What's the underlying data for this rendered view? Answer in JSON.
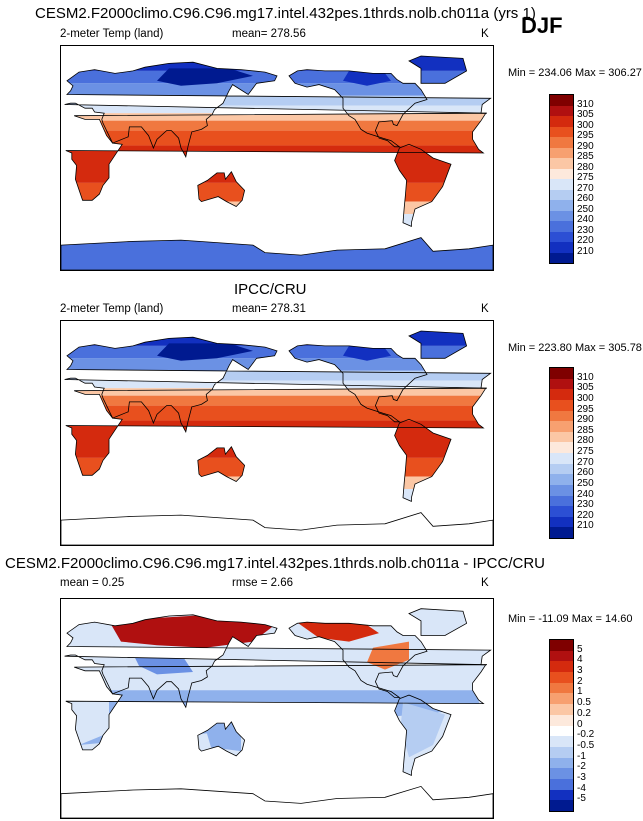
{
  "header": {
    "title": "CESM2.F2000climo.C96.C96.mg17.intel.432pes.1thrds.nolb.ch011a (yrs 1)",
    "season": "DJF"
  },
  "panels": [
    {
      "id": "model",
      "title": "",
      "variable": "2-meter Temp (land)",
      "stat_text": "mean= 278.56",
      "units": "K",
      "minmax": "Min = 234.06 Max = 306.27",
      "levels": [
        "310",
        "305",
        "300",
        "295",
        "290",
        "285",
        "280",
        "275",
        "270",
        "260",
        "250",
        "240",
        "230",
        "220",
        "210"
      ],
      "colors": [
        "#7f0000",
        "#b01010",
        "#d42a0e",
        "#e8501e",
        "#f07840",
        "#f7a070",
        "#fbc7a5",
        "#fde9dc",
        "#d9e6f8",
        "#b5cdf2",
        "#8fb1ec",
        "#6b91e4",
        "#4a70dc",
        "#2c4fd4",
        "#1230c0",
        "#001a90"
      ]
    },
    {
      "id": "obs",
      "title": "IPCC/CRU",
      "variable": "2-meter Temp (land)",
      "stat_text": "mean= 278.31",
      "units": "K",
      "minmax": "Min = 223.80 Max = 305.78",
      "levels": [
        "310",
        "305",
        "300",
        "295",
        "290",
        "285",
        "280",
        "275",
        "270",
        "260",
        "250",
        "240",
        "230",
        "220",
        "210"
      ],
      "colors": [
        "#7f0000",
        "#b01010",
        "#d42a0e",
        "#e8501e",
        "#f07840",
        "#f7a070",
        "#fbc7a5",
        "#fde9dc",
        "#d9e6f8",
        "#b5cdf2",
        "#8fb1ec",
        "#6b91e4",
        "#4a70dc",
        "#2c4fd4",
        "#1230c0",
        "#001a90"
      ]
    },
    {
      "id": "diff",
      "title": "CESM2.F2000climo.C96.C96.mg17.intel.432pes.1thrds.nolb.ch011a - IPCC/CRU",
      "stat_text": "mean =    0.25",
      "stat2_text": "rmse =    2.66",
      "units": "K",
      "minmax": "Min = -11.09 Max =  14.60",
      "levels": [
        "5",
        "4",
        "3",
        "2",
        "1",
        "0.5",
        "0.2",
        "0",
        "-0.2",
        "-0.5",
        "-1",
        "-2",
        "-3",
        "-4",
        "-5"
      ],
      "colors": [
        "#7f0000",
        "#b01010",
        "#d42a0e",
        "#e8501e",
        "#f07840",
        "#f7a070",
        "#fbc7a5",
        "#fde9dc",
        "#ffffff",
        "#d9e6f8",
        "#b5cdf2",
        "#8fb1ec",
        "#6b91e4",
        "#4a70dc",
        "#1230c0",
        "#001a90"
      ]
    }
  ]
}
